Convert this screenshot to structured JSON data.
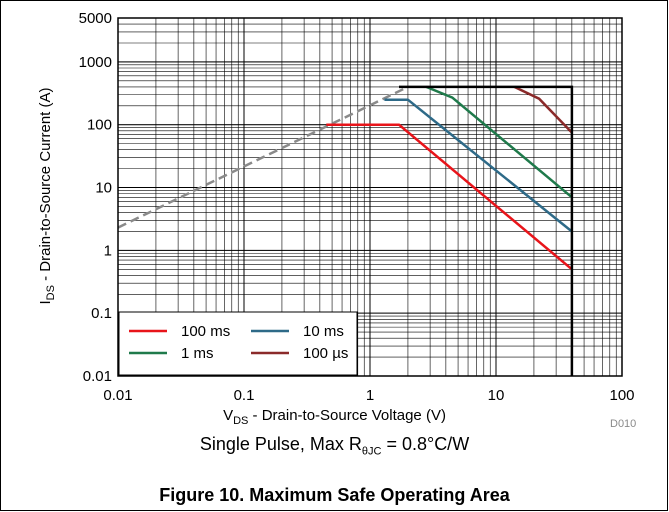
{
  "chart_data": {
    "type": "line",
    "x_scale": "log",
    "y_scale": "log",
    "xlim": [
      0.01,
      100
    ],
    "ylim": [
      0.01,
      5000
    ],
    "x_ticks": [
      "0.01",
      "0.1",
      "1",
      "10",
      "100"
    ],
    "y_ticks": [
      "0.01",
      "0.1",
      "1",
      "10",
      "100",
      "1000",
      "5000"
    ],
    "xlabel": {
      "main": "V",
      "sub": "DS",
      "rest": " - Drain-to-Source Voltage (V)"
    },
    "ylabel": {
      "main": "I",
      "sub": "DS",
      "rest": " - Drain-to-Source Current (A)"
    },
    "grid": true,
    "legend_position": "bottom-left",
    "rds_limit": {
      "color": "#8a8a8a",
      "points": [
        [
          0.01,
          2.3
        ],
        [
          2.0,
          400
        ]
      ]
    },
    "boundary": {
      "color": "#000000",
      "points": [
        [
          1.7,
          400
        ],
        [
          40,
          400
        ],
        [
          40,
          0.01
        ]
      ]
    },
    "series": [
      {
        "name": "100 ms",
        "color": "#e8141a",
        "points": [
          [
            0.45,
            100
          ],
          [
            1.7,
            100
          ],
          [
            40,
            0.5
          ]
        ]
      },
      {
        "name": "10 ms",
        "color": "#2e6a88",
        "points": [
          [
            1.3,
            250
          ],
          [
            2.0,
            250
          ],
          [
            40,
            2.0
          ]
        ]
      },
      {
        "name": "1 ms",
        "color": "#1f7a4b",
        "points": [
          [
            2.8,
            400
          ],
          [
            4.5,
            270
          ],
          [
            40,
            7.0
          ]
        ]
      },
      {
        "name": "100 µs",
        "color": "#8b2a2a",
        "points": [
          [
            14,
            400
          ],
          [
            22,
            260
          ],
          [
            40,
            75
          ]
        ]
      }
    ]
  },
  "captions": {
    "code": "D010",
    "note_main": "Single Pulse, Max R",
    "note_sub": "θJC",
    "note_rest": " = 0.8°C/W",
    "figure_title": "Figure 10. Maximum Safe Operating Area"
  }
}
